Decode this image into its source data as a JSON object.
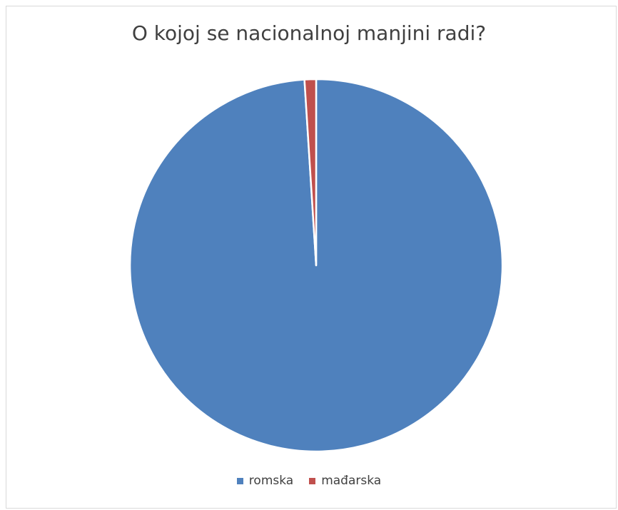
{
  "chart_data": {
    "type": "pie",
    "title": "O kojoj se nacionalnoj manjini radi?",
    "categories": [
      "romska",
      "mađarska"
    ],
    "values": [
      99,
      1
    ],
    "colors": [
      "#4f81bd",
      "#c0504d"
    ],
    "legend_position": "bottom",
    "start_angle_deg": 0,
    "direction": "clockwise"
  }
}
